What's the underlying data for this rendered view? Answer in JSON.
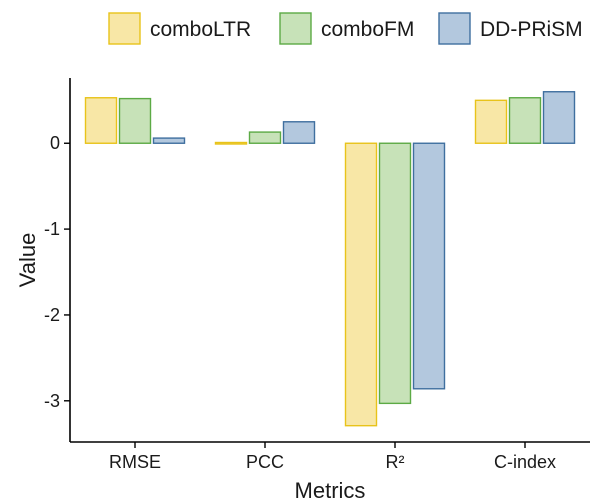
{
  "chart_data": {
    "type": "bar",
    "xlabel": "Metrics",
    "ylabel": "Value",
    "categories": [
      "RMSE",
      "PCC",
      "R²",
      "C-index"
    ],
    "series": [
      {
        "name": "comboLTR",
        "values": [
          0.53,
          0.01,
          -3.29,
          0.5
        ],
        "fill": "#f8e7a6",
        "stroke": "#e8c31a"
      },
      {
        "name": "comboFM",
        "values": [
          0.52,
          0.13,
          -3.03,
          0.53
        ],
        "fill": "#c7e2b8",
        "stroke": "#5caa45"
      },
      {
        "name": "DD-PRiSM",
        "values": [
          0.06,
          0.25,
          -2.86,
          0.6
        ],
        "fill": "#b3c8de",
        "stroke": "#3f6f9f"
      }
    ],
    "ylim": [
      -3.48,
      0.76
    ],
    "yticks": [
      0,
      -1,
      -2,
      -3
    ],
    "ytick_labels": [
      "0",
      "-1",
      "-2",
      "-3"
    ],
    "legend_position": "top-right",
    "grid": false
  }
}
